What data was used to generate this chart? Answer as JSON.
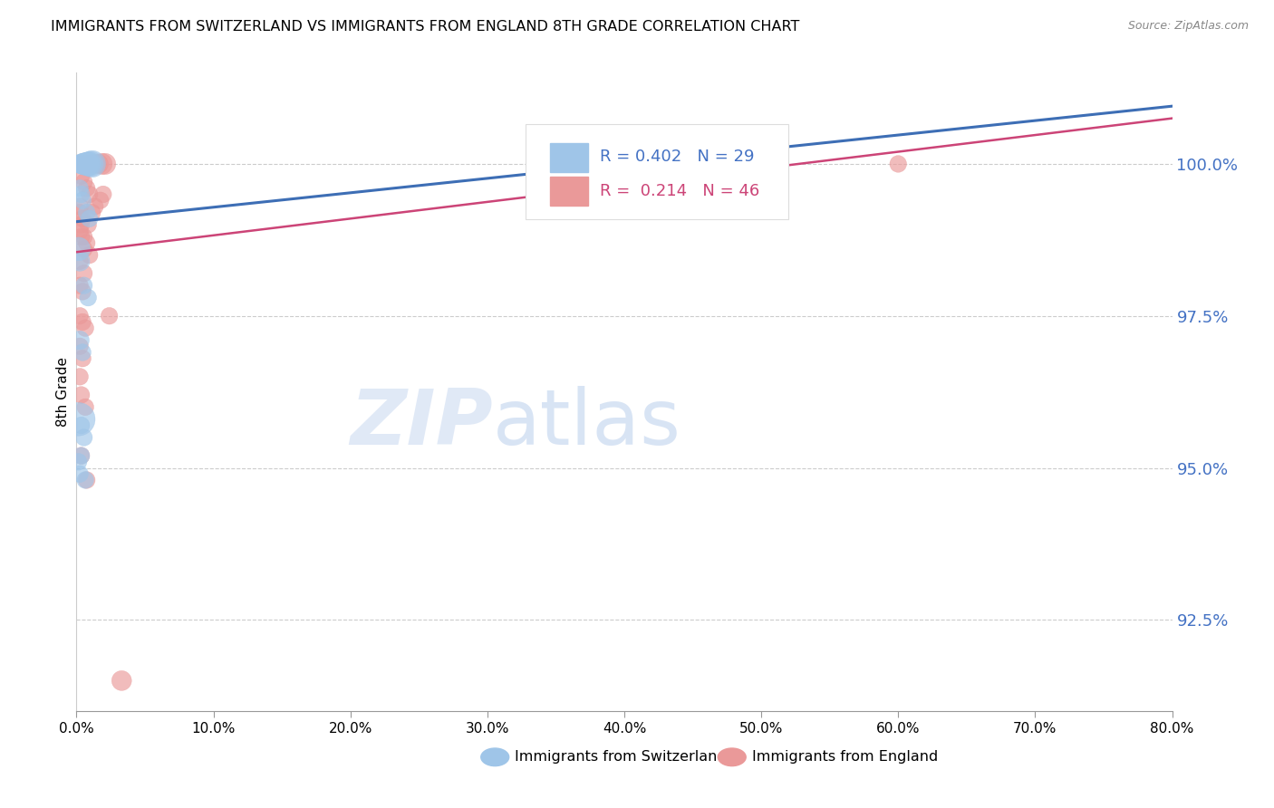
{
  "title": "IMMIGRANTS FROM SWITZERLAND VS IMMIGRANTS FROM ENGLAND 8TH GRADE CORRELATION CHART",
  "source": "Source: ZipAtlas.com",
  "ylabel": "8th Grade",
  "yticks": [
    92.5,
    95.0,
    97.5,
    100.0
  ],
  "ytick_labels": [
    "92.5%",
    "95.0%",
    "97.5%",
    "100.0%"
  ],
  "xticks": [
    0.0,
    10.0,
    20.0,
    30.0,
    40.0,
    50.0,
    60.0,
    70.0,
    80.0
  ],
  "xtick_labels": [
    "0.0%",
    "10.0%",
    "20.0%",
    "30.0%",
    "40.0%",
    "50.0%",
    "60.0%",
    "70.0%",
    "80.0%"
  ],
  "xlim": [
    0.0,
    80.0
  ],
  "ylim": [
    91.0,
    101.5
  ],
  "blue_color": "#9fc5e8",
  "pink_color": "#ea9999",
  "blue_line_color": "#3d6eb5",
  "pink_line_color": "#cc4477",
  "legend_blue": "Immigrants from Switzerland",
  "legend_pink": "Immigrants from England",
  "R_blue": 0.402,
  "N_blue": 29,
  "R_pink": 0.214,
  "N_pink": 46,
  "watermark_zip": "ZIP",
  "watermark_atlas": "atlas",
  "blue_x": [
    0.15,
    0.25,
    0.35,
    0.45,
    0.55,
    0.65,
    0.75,
    0.85,
    0.95,
    1.05,
    1.15,
    0.25,
    0.35,
    0.45,
    0.75,
    0.95,
    0.15,
    0.25,
    0.55,
    0.85,
    0.25,
    0.45,
    0.15,
    0.35,
    0.55,
    0.25,
    0.15,
    0.35,
    0.65
  ],
  "blue_y": [
    100.0,
    100.0,
    100.0,
    100.0,
    100.0,
    100.0,
    100.0,
    100.0,
    100.0,
    100.0,
    100.0,
    99.6,
    99.5,
    99.4,
    99.2,
    99.1,
    98.6,
    98.4,
    98.0,
    97.8,
    97.1,
    96.9,
    95.8,
    95.7,
    95.5,
    94.9,
    95.1,
    95.2,
    94.8
  ],
  "blue_sizes": [
    200,
    200,
    250,
    280,
    300,
    300,
    350,
    350,
    350,
    400,
    450,
    180,
    180,
    180,
    180,
    180,
    350,
    250,
    180,
    180,
    220,
    180,
    700,
    180,
    180,
    180,
    180,
    180,
    180
  ],
  "pink_x": [
    0.25,
    0.45,
    0.65,
    0.85,
    1.05,
    1.25,
    1.45,
    1.65,
    1.85,
    2.1,
    0.35,
    0.55,
    0.75,
    0.95,
    1.35,
    0.25,
    0.35,
    0.55,
    0.75,
    0.95,
    0.25,
    0.45,
    0.25,
    0.45,
    0.65,
    0.25,
    0.45,
    0.25,
    2.4,
    0.35,
    0.65,
    1.15,
    0.25,
    0.55,
    0.35,
    0.75,
    0.25,
    0.85,
    0.45,
    60.0,
    0.55,
    1.75,
    1.95,
    0.25,
    3.3,
    0.35
  ],
  "pink_y": [
    100.0,
    100.0,
    100.0,
    100.0,
    100.0,
    100.0,
    100.0,
    100.0,
    100.0,
    100.0,
    99.8,
    99.7,
    99.6,
    99.5,
    99.3,
    99.2,
    99.0,
    98.8,
    98.7,
    98.5,
    98.0,
    97.9,
    97.5,
    97.4,
    97.3,
    97.0,
    96.8,
    96.5,
    97.5,
    96.2,
    96.0,
    99.2,
    98.4,
    98.2,
    95.2,
    94.8,
    99.3,
    99.0,
    99.1,
    100.0,
    98.6,
    99.4,
    99.5,
    98.9,
    91.5,
    98.8
  ],
  "pink_sizes": [
    180,
    180,
    180,
    180,
    220,
    220,
    220,
    220,
    280,
    280,
    180,
    180,
    180,
    180,
    180,
    180,
    180,
    180,
    180,
    180,
    180,
    180,
    180,
    180,
    180,
    180,
    180,
    180,
    180,
    180,
    180,
    180,
    180,
    180,
    180,
    180,
    180,
    180,
    180,
    180,
    180,
    180,
    180,
    180,
    250,
    180
  ]
}
